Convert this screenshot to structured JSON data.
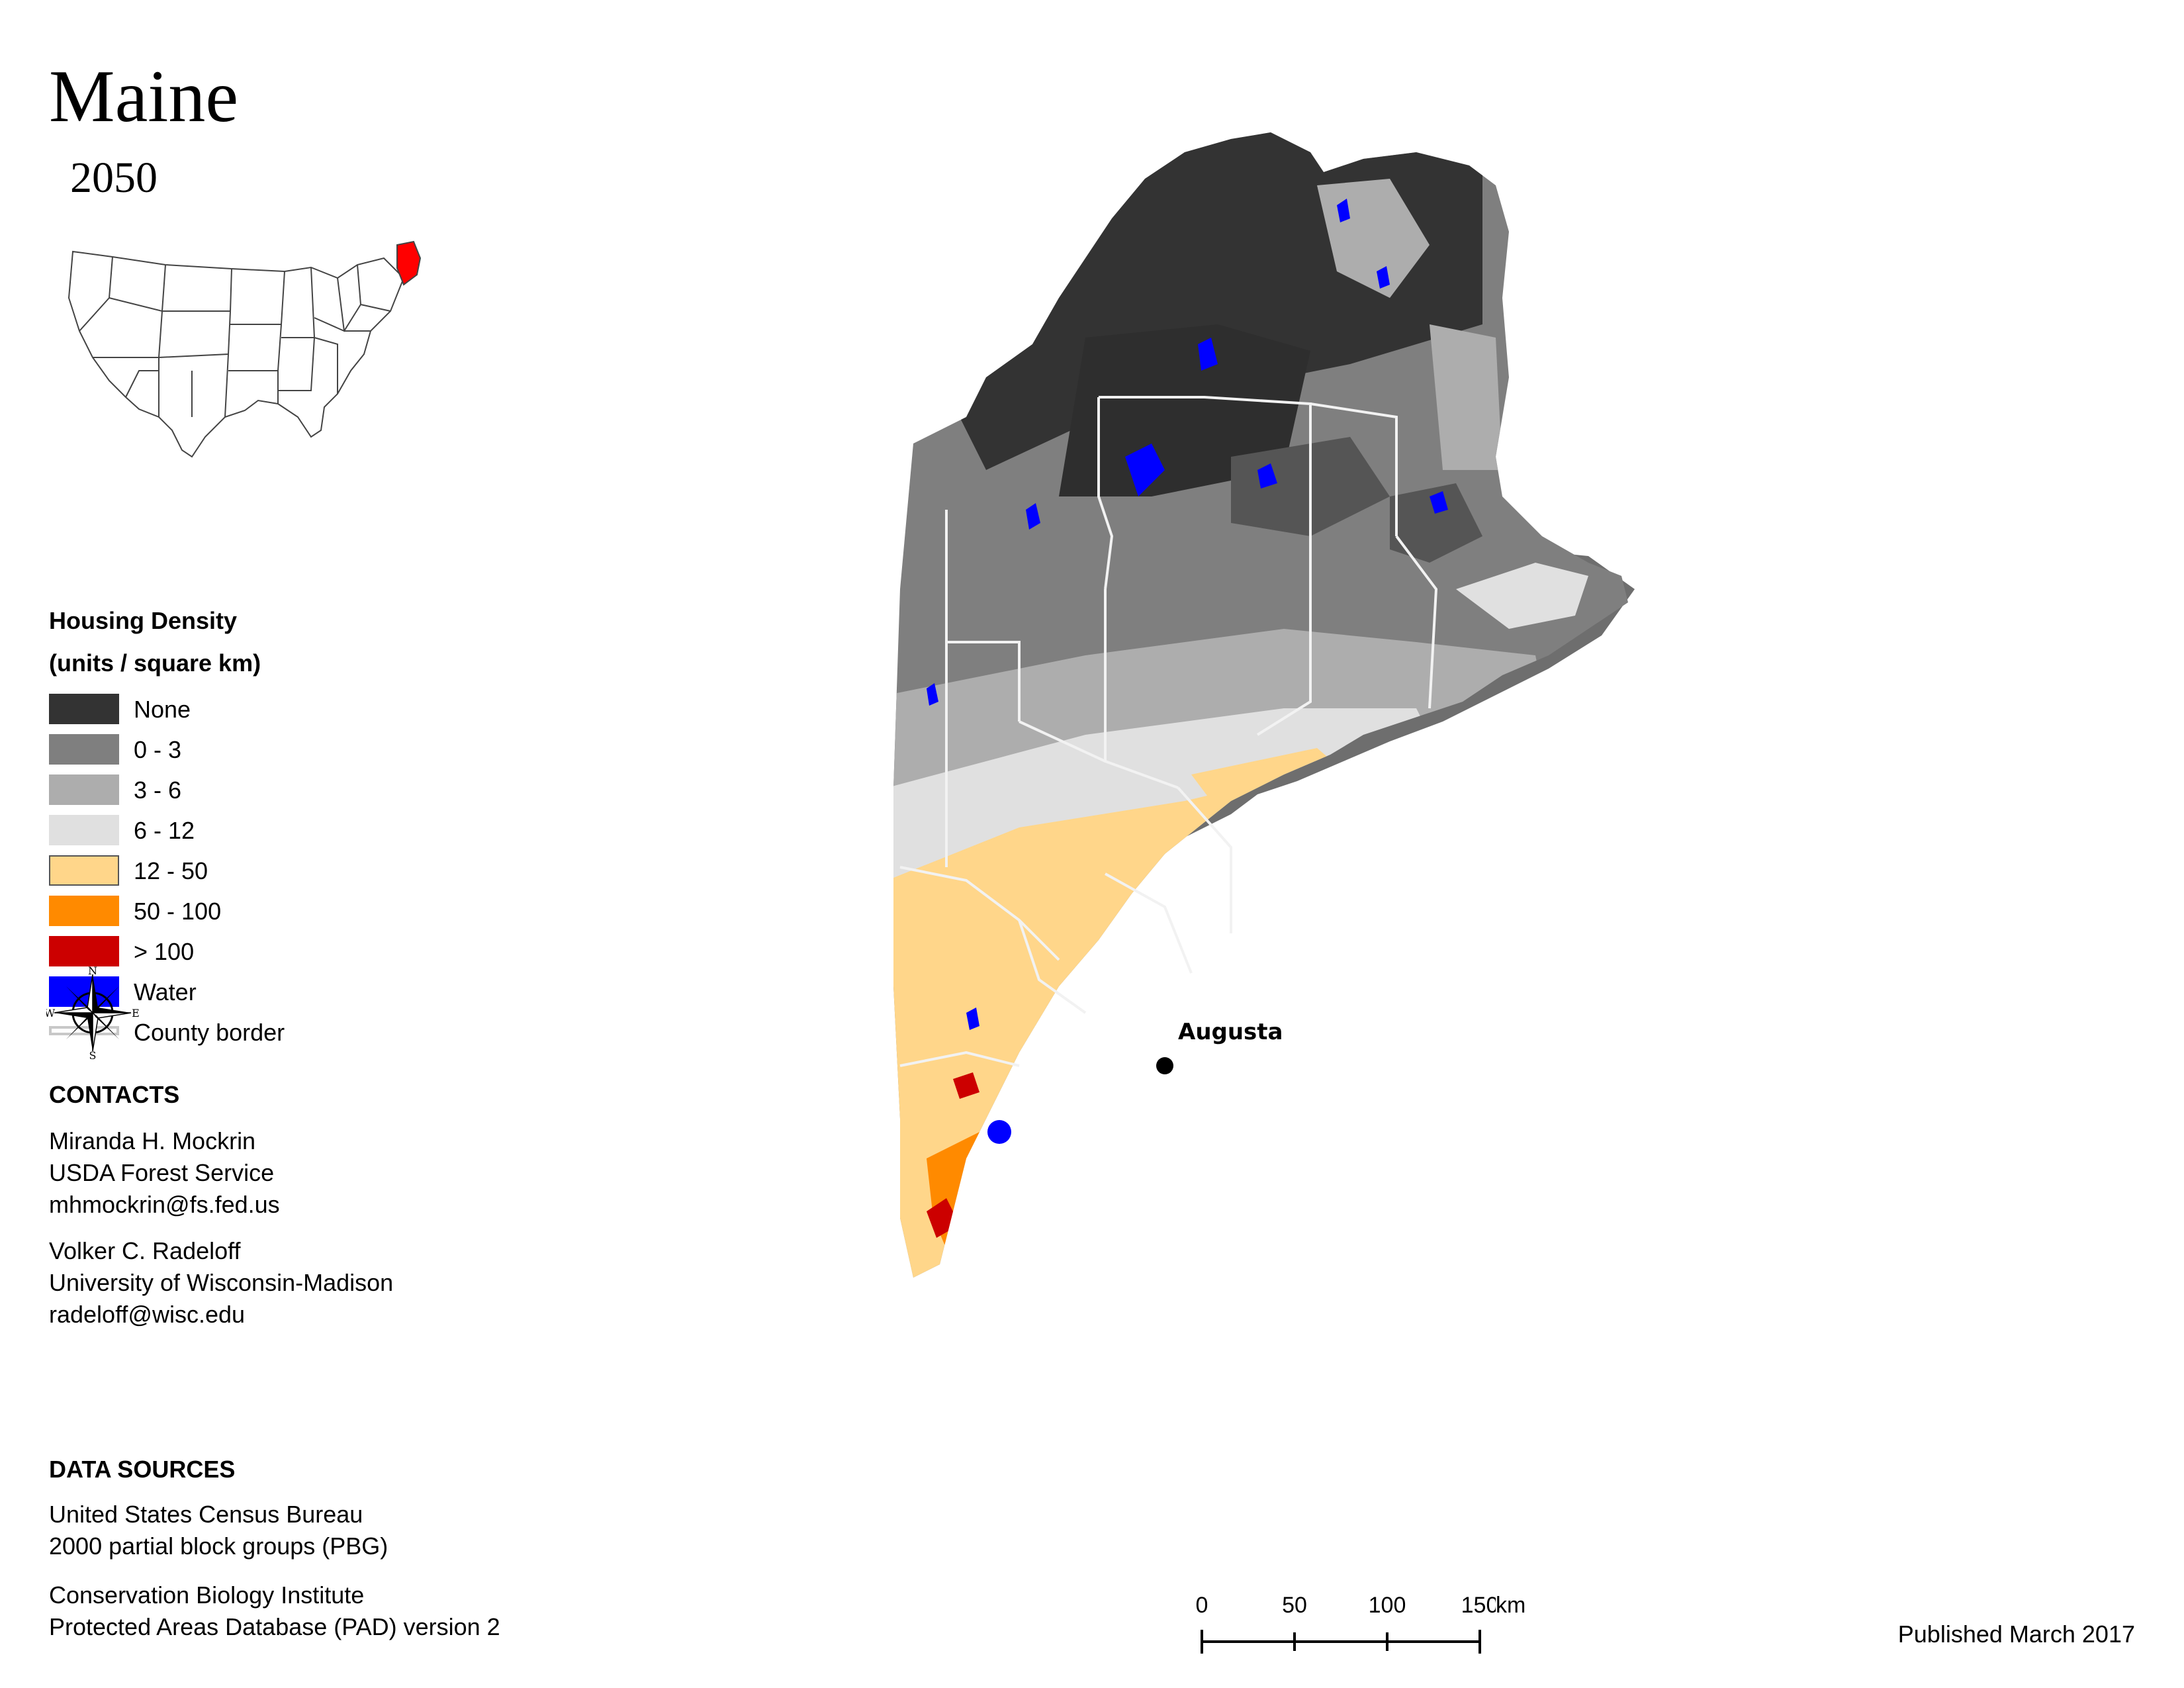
{
  "title": "Maine",
  "subtitle": "2050",
  "inset_map": {
    "highlighted_state": "Maine",
    "highlight_color": "#ff0000"
  },
  "legend": {
    "heading_line1": "Housing Density",
    "heading_line2": "(units / square km)",
    "items": [
      {
        "label": "None",
        "color": "#333333"
      },
      {
        "label": "0 - 3",
        "color": "#7f7f7f"
      },
      {
        "label": "3 - 6",
        "color": "#adadad"
      },
      {
        "label": "6 - 12",
        "color": "#e0e0e0"
      },
      {
        "label": "12 - 50",
        "color": "#ffd68a"
      },
      {
        "label": "50 - 100",
        "color": "#ff8a00"
      },
      {
        "label": "> 100",
        "color": "#cc0000"
      },
      {
        "label": "Water",
        "color": "#0000ff"
      },
      {
        "label": "County border",
        "color": "#d0d0d0"
      }
    ]
  },
  "compass": {
    "n": "N",
    "s": "S",
    "e": "E",
    "w": "W"
  },
  "contacts": {
    "heading": "CONTACTS",
    "person1": {
      "name": "Miranda H. Mockrin",
      "org": "USDA Forest Service",
      "email": "mhmockrin@fs.fed.us"
    },
    "person2": {
      "name": "Volker C. Radeloff",
      "org": "University of Wisconsin-Madison",
      "email": "radeloff@wisc.edu"
    }
  },
  "data_sources": {
    "heading": "DATA SOURCES",
    "line1": "United States Census Bureau",
    "line2": "2000 partial block groups (PBG)",
    "line3": "Conservation Biology Institute",
    "line4": "Protected Areas Database (PAD) version 2"
  },
  "map": {
    "city": "Augusta"
  },
  "scale": {
    "ticks": [
      "0",
      "50",
      "100",
      "150"
    ],
    "unit": "km"
  },
  "published": "Published March 2017"
}
